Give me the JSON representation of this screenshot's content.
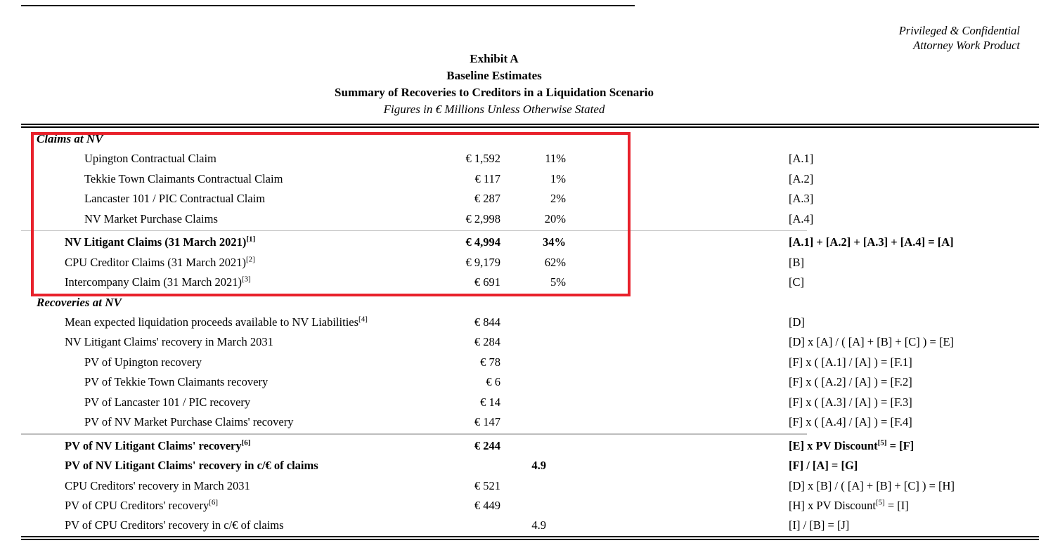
{
  "meta": {
    "confidential": [
      "Privileged & Confidential",
      "Attorney Work Product"
    ]
  },
  "title": {
    "line1": "Exhibit A",
    "line2": "Baseline Estimates",
    "line3": "Summary of Recoveries to Creditors in a Liquidation Scenario",
    "line4": "Figures in € Millions Unless Otherwise Stated"
  },
  "annotation": {
    "shape": "rectangle",
    "color": "#e8212b"
  },
  "table": {
    "rows": [
      {
        "type": "section",
        "label": "Claims at NV"
      },
      {
        "type": "item",
        "indent": 2,
        "label": "Upington Contractual Claim",
        "amount": "€ 1,592",
        "pct": "11%",
        "formula": [
          {
            "text": "[A.1]"
          }
        ]
      },
      {
        "type": "item",
        "indent": 2,
        "label": "Tekkie Town Claimants Contractual Claim",
        "amount": "€ 117",
        "pct": "1%",
        "formula": [
          {
            "text": "[A.2]"
          }
        ]
      },
      {
        "type": "item",
        "indent": 2,
        "label": "Lancaster 101 / PIC Contractual Claim",
        "amount": "€ 287",
        "pct": "2%",
        "formula": [
          {
            "text": "[A.3]"
          }
        ]
      },
      {
        "type": "item",
        "indent": 2,
        "label": "NV Market Purchase Claims",
        "amount": "€ 2,998",
        "pct": "20%",
        "formula": [
          {
            "text": "[A.4]"
          }
        ]
      },
      {
        "type": "rule"
      },
      {
        "type": "item",
        "indent": 1,
        "bold": true,
        "label": "NV Litigant Claims (31 March 2021)",
        "label_sup": "[1]",
        "amount": "€ 4,994",
        "pct": "34%",
        "formula": [
          {
            "text": "[A.1] + [A.2] + [A.3] + [A.4] = [A]"
          }
        ]
      },
      {
        "type": "item",
        "indent": 1,
        "label": "CPU Creditor Claims (31 March 2021)",
        "label_sup": "[2]",
        "amount": "€ 9,179",
        "pct": "62%",
        "formula": [
          {
            "text": "[B]"
          }
        ]
      },
      {
        "type": "item",
        "indent": 1,
        "label": "Intercompany Claim (31 March 2021)",
        "label_sup": "[3]",
        "amount": "€ 691",
        "pct": "5%",
        "formula": [
          {
            "text": "[C]"
          }
        ]
      },
      {
        "type": "section",
        "label": "Recoveries at NV"
      },
      {
        "type": "item",
        "indent": 1,
        "label": "Mean expected liquidation proceeds available to NV Liabilities",
        "label_sup": "[4]",
        "amount": "€ 844",
        "pct": "",
        "formula": [
          {
            "text": "[D]"
          }
        ]
      },
      {
        "type": "item",
        "indent": 1,
        "label": "NV Litigant Claims' recovery in March 2031",
        "amount": "€ 284",
        "pct": "",
        "formula": [
          {
            "text": "[D] x [A] / ( [A] + [B] + [C] ) = [E]"
          }
        ]
      },
      {
        "type": "item",
        "indent": 2,
        "label": "PV of Upington recovery",
        "amount": "€ 78",
        "pct": "",
        "formula": [
          {
            "text": "[F] x ( [A.1] / [A] ) = [F.1]"
          }
        ]
      },
      {
        "type": "item",
        "indent": 2,
        "label": "PV of Tekkie Town Claimants recovery",
        "amount": "€ 6",
        "pct": "",
        "formula": [
          {
            "text": "[F] x ( [A.2] / [A] ) = [F.2]"
          }
        ]
      },
      {
        "type": "item",
        "indent": 2,
        "label": "PV of Lancaster 101 / PIC recovery",
        "amount": "€ 14",
        "pct": "",
        "formula": [
          {
            "text": "[F] x ( [A.3] / [A] ) = [F.3]"
          }
        ]
      },
      {
        "type": "item",
        "indent": 2,
        "label": "PV of NV Market Purchase Claims' recovery",
        "amount": "€ 147",
        "pct": "",
        "formula": [
          {
            "text": "[F] x ( [A.4] / [A] ) = [F.4]"
          }
        ]
      },
      {
        "type": "rule"
      },
      {
        "type": "item",
        "indent": 1,
        "bold": true,
        "label": "PV of NV Litigant Claims' recovery",
        "label_sup": "[6]",
        "amount": "€ 244",
        "pct": "",
        "formula": [
          {
            "text": "[E] x PV Discount"
          },
          {
            "sup": "[5]"
          },
          {
            "text": " = [F]"
          }
        ]
      },
      {
        "type": "item",
        "indent": 1,
        "bold": true,
        "label": "PV of NV Litigant Claims' recovery in c/€ of claims",
        "amount": "",
        "pct": "4.9",
        "cents": true,
        "formula": [
          {
            "text": "[F] / [A] = [G]"
          }
        ]
      },
      {
        "type": "item",
        "indent": 1,
        "label": "CPU Creditors' recovery in March 2031",
        "amount": "€ 521",
        "pct": "",
        "formula": [
          {
            "text": "[D] x [B] / ( [A] + [B] + [C] ) = [H]"
          }
        ]
      },
      {
        "type": "item",
        "indent": 1,
        "label": "PV of CPU Creditors' recovery",
        "label_sup": "[6]",
        "amount": "€ 449",
        "pct": "",
        "formula": [
          {
            "text": "[H] x PV Discount"
          },
          {
            "sup": "[5]"
          },
          {
            "text": " = [I]"
          }
        ]
      },
      {
        "type": "item",
        "indent": 1,
        "label": "PV of CPU Creditors' recovery in c/€ of claims",
        "amount": "",
        "pct": "4.9",
        "cents": true,
        "formula": [
          {
            "text": "[I] / [B] = [J]"
          }
        ]
      }
    ]
  }
}
